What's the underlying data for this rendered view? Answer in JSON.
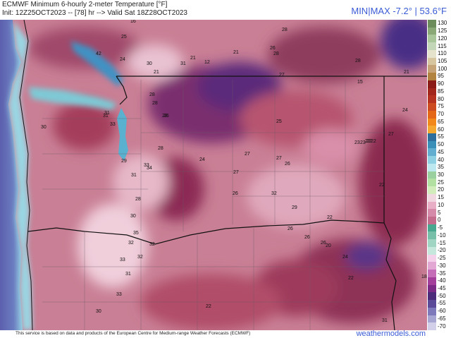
{
  "header": {
    "title_line1": "ECMWF Minimum 6-hourly 2-meter Temperature [°F]",
    "title_line2": "Init: 12Z25OCT2023 -- [78] hr --> Valid Sat 18Z28OCT2023",
    "minmax": "MIN|MAX -7.2° | 53.6°F"
  },
  "footer": {
    "credit": "This service is based on data and products of the European Centre for Medium-range Weather Forecasts (ECMWF)",
    "brand": "weathermodels.com"
  },
  "colorbar": {
    "labels": [
      "130",
      "125",
      "120",
      "115",
      "110",
      "105",
      "100",
      "95",
      "90",
      "85",
      "80",
      "75",
      "70",
      "65",
      "60",
      "55",
      "50",
      "45",
      "40",
      "35",
      "30",
      "25",
      "20",
      "15",
      "10",
      "5",
      "0",
      "-5",
      "-10",
      "-15",
      "-20",
      "-25",
      "-30",
      "-35",
      "-40",
      "-45",
      "-50",
      "-55",
      "-60",
      "-65",
      "-70"
    ],
    "colors": [
      "#6c8c5c",
      "#8aa875",
      "#a9c59a",
      "#c3d7b8",
      "#e6e3cd",
      "#d7c5a0",
      "#c6a477",
      "#b2833f",
      "#8b1b16",
      "#a3261c",
      "#b53221",
      "#cc4b20",
      "#e46718",
      "#f2871a",
      "#f5a830",
      "#2e6e9c",
      "#3a8fb8",
      "#61aed0",
      "#8fd1e3",
      "#bde8ef",
      "#9ad0a0",
      "#b2e0a3",
      "#d2ecbc",
      "#f0d7e0",
      "#e7aec5",
      "#d58aa9",
      "#c36c8c",
      "#49a68f",
      "#77bfa9",
      "#a0d5c3",
      "#c5e7dc",
      "#f4d0ea",
      "#e2a7d2",
      "#c66db8",
      "#a33f9a",
      "#7b2a86",
      "#4c2b7a",
      "#5a4a98",
      "#7d79ba",
      "#a7a5d2",
      "#d2d0e8"
    ]
  },
  "station_labels": [
    "16",
    "28",
    "25",
    "26",
    "28",
    "31",
    "21",
    "12",
    "21",
    "42",
    "24",
    "30",
    "21",
    "28",
    "15",
    "21",
    "31",
    "26",
    "27",
    "31",
    "33",
    "28",
    "28",
    "30",
    "28",
    "25",
    "24",
    "27",
    "28",
    "22",
    "22",
    "29",
    "34",
    "33",
    "24",
    "27",
    "26",
    "27",
    "31",
    "23",
    "23",
    "22",
    "27",
    "26",
    "22",
    "32",
    "28",
    "22",
    "29",
    "26",
    "30",
    "26",
    "26",
    "35",
    "32",
    "32",
    "20",
    "33",
    "32",
    "24",
    "31",
    "22",
    "33",
    "18",
    "30",
    "22",
    "31"
  ]
}
